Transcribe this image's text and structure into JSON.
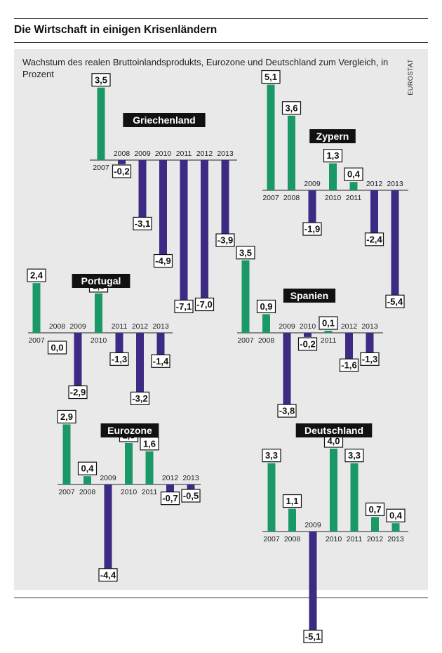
{
  "title": "Die Wirtschaft in einigen Krisenländern",
  "subtitle": "Wachstum des realen Bruttoinlandsprodukts, Eurozone und Deutschland zum Vergleich, in Prozent",
  "source": "EUROSTAT",
  "colors": {
    "positive": "#1a9966",
    "negative": "#3d2a84",
    "panel": "#e9e9e9"
  },
  "chart_data": [
    {
      "type": "bar",
      "title": "Griechenland",
      "categories": [
        "2007",
        "2008",
        "2009",
        "2010",
        "2011",
        "2012",
        "2013"
      ],
      "values": [
        3.5,
        -0.2,
        -3.1,
        -4.9,
        -7.1,
        -7.0,
        -3.9
      ],
      "value_labels": [
        "3,5",
        "-0,2",
        "-3,1",
        "-4,9",
        "-7,1",
        "-7,0",
        "-3,9"
      ]
    },
    {
      "type": "bar",
      "title": "Zypern",
      "categories": [
        "2007",
        "2008",
        "2009",
        "2010",
        "2011",
        "2012",
        "2013"
      ],
      "values": [
        5.1,
        3.6,
        -1.9,
        1.3,
        0.4,
        -2.4,
        -5.4
      ],
      "value_labels": [
        "5,1",
        "3,6",
        "-1,9",
        "1,3",
        "0,4",
        "-2,4",
        "-5,4"
      ]
    },
    {
      "type": "bar",
      "title": "Portugal",
      "categories": [
        "2007",
        "2008",
        "2009",
        "2010",
        "2011",
        "2012",
        "2013"
      ],
      "values": [
        2.4,
        0.0,
        -2.9,
        1.9,
        -1.3,
        -3.2,
        -1.4
      ],
      "value_labels": [
        "2,4",
        "0,0",
        "-2,9",
        "1,9",
        "-1,3",
        "-3,2",
        "-1,4"
      ]
    },
    {
      "type": "bar",
      "title": "Spanien",
      "categories": [
        "2007",
        "2008",
        "2009",
        "2010",
        "2011",
        "2012",
        "2013"
      ],
      "values": [
        3.5,
        0.9,
        -3.8,
        -0.2,
        0.1,
        -1.6,
        -1.3
      ],
      "value_labels": [
        "3,5",
        "0,9",
        "-3,8",
        "-0,2",
        "0,1",
        "-1,6",
        "-1,3"
      ]
    },
    {
      "type": "bar",
      "title": "Eurozone",
      "categories": [
        "2007",
        "2008",
        "2009",
        "2010",
        "2011",
        "2012",
        "2013"
      ],
      "values": [
        2.9,
        0.4,
        -4.4,
        2.0,
        1.6,
        -0.7,
        -0.5
      ],
      "value_labels": [
        "2,9",
        "0,4",
        "-4,4",
        "2,0",
        "1,6",
        "-0,7",
        "-0,5"
      ]
    },
    {
      "type": "bar",
      "title": "Deutschland",
      "categories": [
        "2007",
        "2008",
        "2009",
        "2010",
        "2011",
        "2012",
        "2013"
      ],
      "values": [
        3.3,
        1.1,
        -5.1,
        4.0,
        3.3,
        0.7,
        0.4
      ],
      "value_labels": [
        "3,3",
        "1,1",
        "-5,1",
        "4,0",
        "3,3",
        "0,7",
        "0,4"
      ]
    }
  ]
}
